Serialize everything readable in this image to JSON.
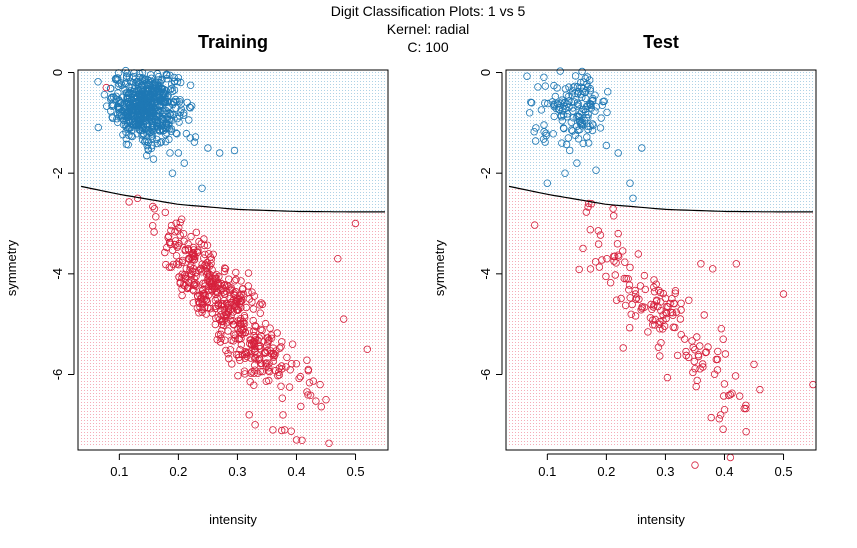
{
  "suptitle": {
    "line1": "Digit Classification Plots: 1 vs 5",
    "line2": "Kernel: radial",
    "line3": "C: 100"
  },
  "colors": {
    "class_1": "#1f78b4",
    "class_5": "#d6203c",
    "grid_class_1": "#a6cee3",
    "grid_class_5": "#f4a3b0",
    "boundary": "#000000"
  },
  "chart_data": [
    {
      "type": "scatter",
      "title": "Training",
      "xlabel": "intensity",
      "ylabel": "symmetry",
      "xlim": [
        0.03,
        0.555
      ],
      "ylim": [
        -7.5,
        0.05
      ],
      "xticks": [
        "0.1",
        "0.2",
        "0.3",
        "0.4",
        "0.5"
      ],
      "yticks": [
        "0",
        "-2",
        "-4",
        "-6"
      ],
      "decision_boundary": {
        "x": [
          0.03,
          0.1,
          0.2,
          0.3,
          0.4,
          0.5,
          0.555
        ],
        "y": [
          -2.25,
          -2.42,
          -2.62,
          -2.72,
          -2.76,
          -2.77,
          -2.77
        ]
      },
      "series": [
        {
          "name": "",
          "label": "1",
          "cluster": {
            "cx": 0.145,
            "cy": -0.65,
            "sx": 0.028,
            "sy": 0.35,
            "n": 620
          },
          "outliers": [
            [
              0.2,
              -1.6
            ],
            [
              0.21,
              -1.8
            ],
            [
              0.19,
              -2.0
            ],
            [
              0.25,
              -1.5
            ],
            [
              0.27,
              -1.6
            ],
            [
              0.295,
              -1.55
            ],
            [
              0.24,
              -2.3
            ],
            [
              0.18,
              -1.2
            ],
            [
              0.22,
              -1.3
            ],
            [
              0.085,
              -0.32
            ]
          ]
        },
        {
          "name": "",
          "label": "5",
          "cluster": {
            "cx": 0.28,
            "cy": -4.65,
            "sx": 0.06,
            "sy": 0.75,
            "n": 500
          },
          "outliers": [
            [
              0.078,
              -0.3
            ],
            [
              0.5,
              -3.0
            ],
            [
              0.47,
              -3.7
            ],
            [
              0.52,
              -5.5
            ],
            [
              0.48,
              -4.9
            ],
            [
              0.4,
              -7.3
            ],
            [
              0.32,
              -6.8
            ],
            [
              0.36,
              -7.1
            ],
            [
              0.38,
              -7.1
            ],
            [
              0.44,
              -6.2
            ],
            [
              0.45,
              -6.5
            ],
            [
              0.33,
              -7.0
            ],
            [
              0.42,
              -5.9
            ]
          ]
        }
      ]
    },
    {
      "type": "scatter",
      "title": "Test",
      "xlabel": "intensity",
      "ylabel": "symmetry",
      "xlim": [
        0.03,
        0.555
      ],
      "ylim": [
        -7.5,
        0.05
      ],
      "xticks": [
        "0.1",
        "0.2",
        "0.3",
        "0.4",
        "0.5"
      ],
      "yticks": [
        "0",
        "-2",
        "-4",
        "-6"
      ],
      "decision_boundary": {
        "x": [
          0.03,
          0.1,
          0.2,
          0.3,
          0.4,
          0.5,
          0.555
        ],
        "y": [
          -2.25,
          -2.42,
          -2.62,
          -2.72,
          -2.76,
          -2.77,
          -2.77
        ]
      },
      "series": [
        {
          "name": "",
          "label": "1",
          "cluster": {
            "cx": 0.145,
            "cy": -0.7,
            "sx": 0.03,
            "sy": 0.35,
            "n": 150
          },
          "outliers": [
            [
              0.1,
              -2.2
            ],
            [
              0.13,
              -2.0
            ],
            [
              0.15,
              -1.8
            ],
            [
              0.17,
              -1.4
            ],
            [
              0.2,
              -1.45
            ],
            [
              0.22,
              -1.6
            ],
            [
              0.245,
              -2.5
            ],
            [
              0.24,
              -2.2
            ],
            [
              0.07,
              -0.8
            ],
            [
              0.26,
              -1.5
            ],
            [
              0.19,
              -1.1
            ]
          ]
        },
        {
          "name": "",
          "label": "5",
          "cluster": {
            "cx": 0.29,
            "cy": -4.75,
            "sx": 0.07,
            "sy": 0.8,
            "n": 160
          },
          "outliers": [
            [
              0.5,
              -4.4
            ],
            [
              0.55,
              -6.2
            ],
            [
              0.41,
              -7.65
            ],
            [
              0.35,
              -7.8
            ],
            [
              0.46,
              -6.3
            ],
            [
              0.4,
              -6.7
            ],
            [
              0.22,
              -3.2
            ],
            [
              0.17,
              -2.6
            ],
            [
              0.38,
              -3.9
            ],
            [
              0.36,
              -3.8
            ],
            [
              0.42,
              -3.8
            ],
            [
              0.45,
              -5.8
            ]
          ]
        }
      ]
    }
  ]
}
